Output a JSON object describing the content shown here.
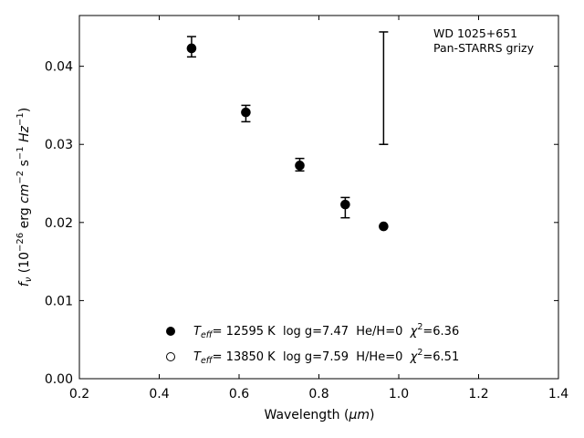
{
  "chart_data": {
    "type": "scatter",
    "xlabel_main": "Wavelength (",
    "xlabel_unit": "μm",
    "xlabel_close": ")",
    "ylabel_f": "f",
    "ylabel_nu": "ν",
    "ylabel_rest": " (10",
    "ylabel_exp1": "−26",
    "ylabel_erg": " erg ",
    "ylabel_cm": "cm",
    "ylabel_exp2": "−2",
    "ylabel_s": " s",
    "ylabel_exp3": "−1",
    "ylabel_hz": " Hz",
    "ylabel_exp4": "−1",
    "ylabel_close": ")",
    "xlim": [
      0.2,
      1.4
    ],
    "ylim": [
      0.0,
      0.0465
    ],
    "x_ticks": [
      0.2,
      0.4,
      0.6,
      0.8,
      1.0,
      1.2,
      1.4
    ],
    "x_tick_labels": [
      "0.2",
      "0.4",
      "0.6",
      "0.8",
      "1.0",
      "1.2",
      "1.4"
    ],
    "y_ticks": [
      0.0,
      0.01,
      0.02,
      0.03,
      0.04
    ],
    "y_tick_labels": [
      "0.00",
      "0.01",
      "0.02",
      "0.03",
      "0.04"
    ],
    "annotation_lines": [
      "WD 1025+651",
      "Pan-STARRS grizy"
    ],
    "observed": {
      "x": [
        0.481,
        0.617,
        0.752,
        0.866,
        0.962
      ],
      "y": [
        0.0425,
        0.0342,
        0.0274,
        0.0224,
        0.0372
      ],
      "yerr_low": [
        0.0013,
        0.0013,
        0.0008,
        0.0018,
        0.0072
      ],
      "yerr_high": [
        0.0013,
        0.0008,
        0.0008,
        0.0008,
        0.0072
      ]
    },
    "series": [
      {
        "marker": "filled",
        "x": [
          0.481,
          0.617,
          0.752,
          0.866,
          0.962
        ],
        "y": [
          0.0423,
          0.0341,
          0.0273,
          0.0223,
          0.0195
        ],
        "legend_teff": "T",
        "legend_eff": "eff",
        "legend_rest1": "= 12595 K  log g=7.47  He/H=0  ",
        "legend_chi": "χ",
        "legend_chi_exp": "2",
        "legend_rest2": "=6.36"
      },
      {
        "marker": "open",
        "x": [],
        "y": [],
        "legend_teff": "T",
        "legend_eff": "eff",
        "legend_rest1": "= 13850 K  log g=7.59  H/He=0  ",
        "legend_chi": "χ",
        "legend_chi_exp": "2",
        "legend_rest2": "=6.51"
      }
    ],
    "grid": false,
    "legend_position": "bottom-center"
  }
}
